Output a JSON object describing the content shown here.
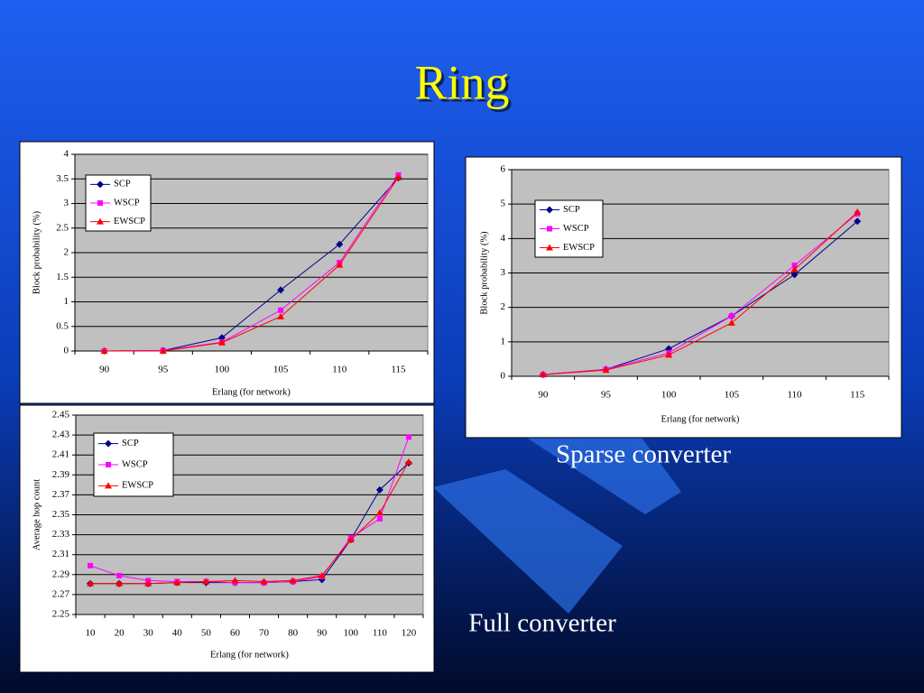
{
  "title": "Ring",
  "captions": [
    "Sparse converter",
    "Full converter"
  ],
  "chart_data": [
    {
      "type": "line",
      "y_label": "Block probability (%)",
      "x_label": "Erlang (for network)",
      "categories": [
        "90",
        "95",
        "100",
        "105",
        "110",
        "115"
      ],
      "ylim": [
        0,
        4
      ],
      "yticks": [
        0,
        0.5,
        1,
        1.5,
        2,
        2.5,
        3,
        3.5,
        4
      ],
      "grid": true,
      "series": [
        {
          "name": "SCP",
          "color": "#00008b",
          "marker": "diamond",
          "values": [
            0,
            0.01,
            0.27,
            1.24,
            2.17,
            3.52
          ]
        },
        {
          "name": "WSCP",
          "color": "#ff00ff",
          "marker": "square",
          "values": [
            0,
            0.01,
            0.18,
            0.83,
            1.8,
            3.58
          ]
        },
        {
          "name": "EWSCP",
          "color": "#ff0000",
          "marker": "triangle",
          "values": [
            0,
            0,
            0.17,
            0.7,
            1.75,
            3.53
          ]
        }
      ]
    },
    {
      "type": "line",
      "y_label": "Block probability (%)",
      "x_label": "Erlang (for network)",
      "categories": [
        "90",
        "95",
        "100",
        "105",
        "110",
        "115"
      ],
      "ylim": [
        0,
        6
      ],
      "yticks": [
        0,
        1,
        2,
        3,
        4,
        5,
        6
      ],
      "grid": true,
      "series": [
        {
          "name": "SCP",
          "color": "#00008b",
          "marker": "diamond",
          "values": [
            0.05,
            0.2,
            0.8,
            1.75,
            2.95,
            4.5
          ]
        },
        {
          "name": "WSCP",
          "color": "#ff00ff",
          "marker": "square",
          "values": [
            0.05,
            0.2,
            0.68,
            1.75,
            3.22,
            4.72
          ]
        },
        {
          "name": "EWSCP",
          "color": "#ff0000",
          "marker": "triangle",
          "values": [
            0.05,
            0.18,
            0.62,
            1.55,
            3.1,
            4.77
          ]
        }
      ]
    },
    {
      "type": "line",
      "y_label": "Average hop count",
      "x_label": "Erlang (for network)",
      "categories": [
        "10",
        "20",
        "30",
        "40",
        "50",
        "60",
        "70",
        "80",
        "90",
        "100",
        "110",
        "120"
      ],
      "ylim": [
        2.25,
        2.45
      ],
      "yticks": [
        2.25,
        2.27,
        2.29,
        2.31,
        2.33,
        2.35,
        2.37,
        2.39,
        2.41,
        2.43,
        2.45
      ],
      "grid": true,
      "series": [
        {
          "name": "SCP",
          "color": "#00008b",
          "marker": "diamond",
          "values": [
            2.281,
            2.281,
            2.281,
            2.282,
            2.282,
            2.282,
            2.282,
            2.283,
            2.285,
            2.325,
            2.375,
            2.402
          ]
        },
        {
          "name": "WSCP",
          "color": "#ff00ff",
          "marker": "square",
          "values": [
            2.299,
            2.289,
            2.284,
            2.283,
            2.283,
            2.282,
            2.282,
            2.283,
            2.288,
            2.327,
            2.346,
            2.428
          ]
        },
        {
          "name": "EWSCP",
          "color": "#ff0000",
          "marker": "triangle",
          "values": [
            2.281,
            2.281,
            2.281,
            2.282,
            2.283,
            2.284,
            2.283,
            2.284,
            2.289,
            2.325,
            2.352,
            2.403
          ]
        }
      ]
    }
  ]
}
